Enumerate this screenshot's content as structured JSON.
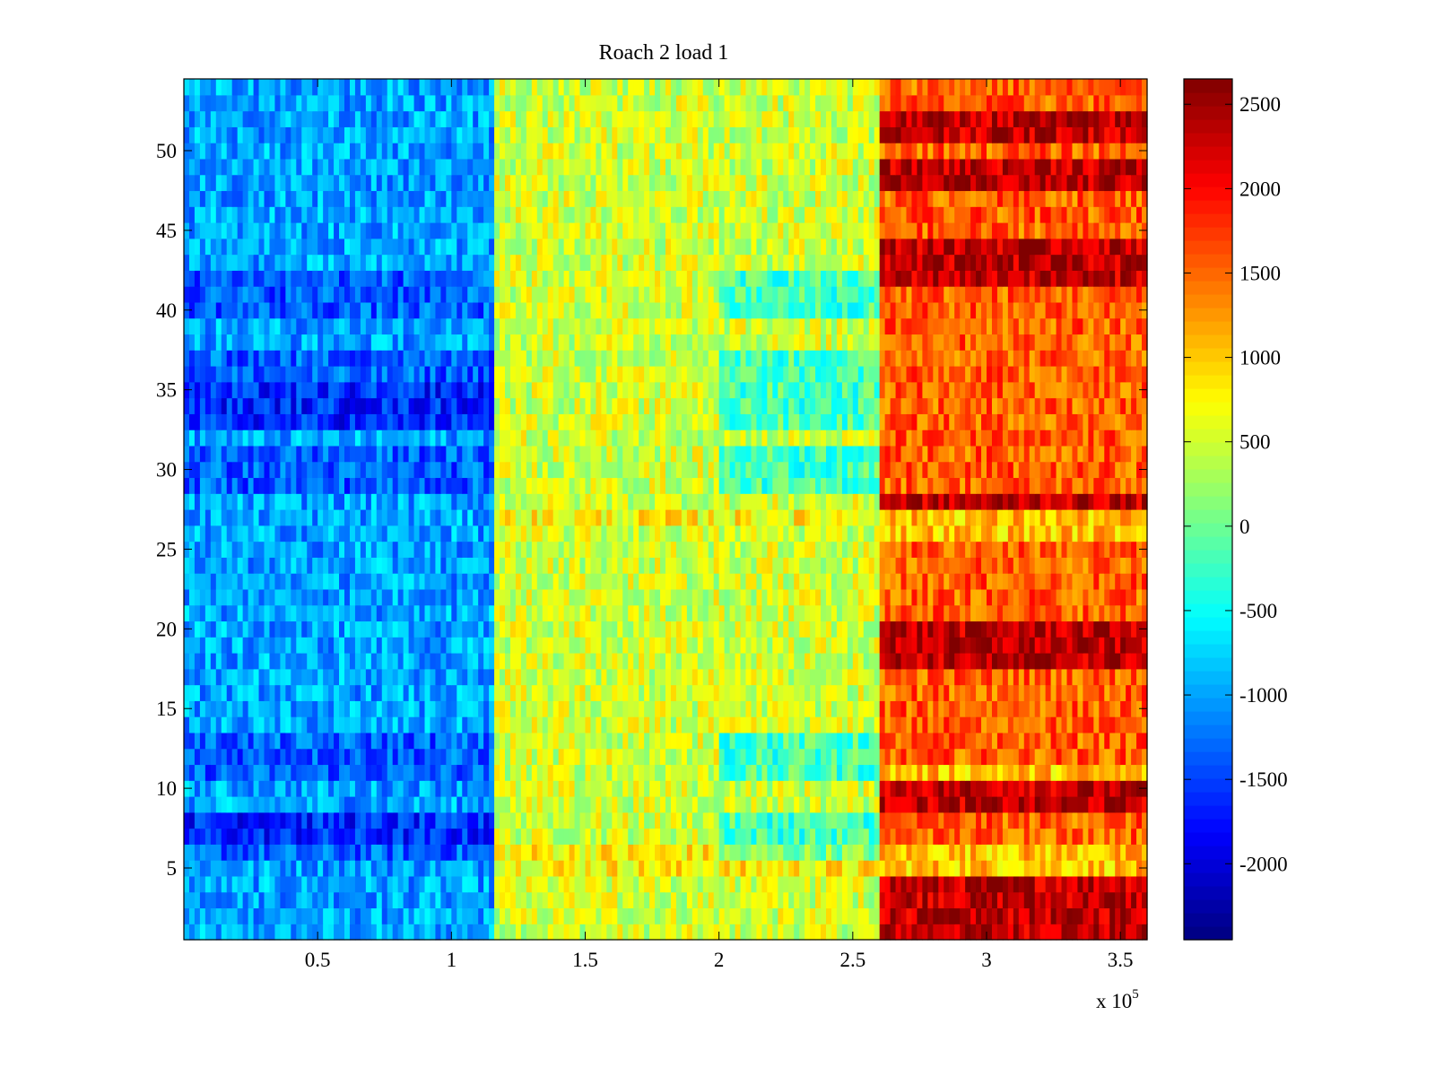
{
  "chart_data": {
    "type": "heatmap",
    "title": "Roach 2 load 1",
    "xlabel": "",
    "ylabel": "",
    "x_exponent_label": "x 10",
    "x_exponent_power": "5",
    "xlim": [
      0,
      360000
    ],
    "ylim": [
      0.5,
      54.5
    ],
    "x_ticks": [
      {
        "value": 50000,
        "label": "0.5"
      },
      {
        "value": 100000,
        "label": "1"
      },
      {
        "value": 150000,
        "label": "1.5"
      },
      {
        "value": 200000,
        "label": "2"
      },
      {
        "value": 250000,
        "label": "2.5"
      },
      {
        "value": 300000,
        "label": "3"
      },
      {
        "value": 350000,
        "label": "3.5"
      }
    ],
    "y_ticks": [
      {
        "value": 5,
        "label": "5"
      },
      {
        "value": 10,
        "label": "10"
      },
      {
        "value": 15,
        "label": "15"
      },
      {
        "value": 20,
        "label": "20"
      },
      {
        "value": 25,
        "label": "25"
      },
      {
        "value": 30,
        "label": "30"
      },
      {
        "value": 35,
        "label": "35"
      },
      {
        "value": 40,
        "label": "40"
      },
      {
        "value": 45,
        "label": "45"
      },
      {
        "value": 50,
        "label": "50"
      }
    ],
    "rows": 54,
    "colorbar": {
      "colormap": "jet",
      "clim": [
        -2450,
        2650
      ],
      "ticks": [
        {
          "value": 2500,
          "label": "2500"
        },
        {
          "value": 2000,
          "label": "2000"
        },
        {
          "value": 1500,
          "label": "1500"
        },
        {
          "value": 1000,
          "label": "1000"
        },
        {
          "value": 500,
          "label": "500"
        },
        {
          "value": 0,
          "label": "0"
        },
        {
          "value": -500,
          "label": "-500"
        },
        {
          "value": -1000,
          "label": "-1000"
        },
        {
          "value": -1500,
          "label": "-1500"
        },
        {
          "value": -2000,
          "label": "-2000"
        }
      ]
    },
    "segments": [
      {
        "x_start": 0,
        "x_end": 117000,
        "mean_value": -1000
      },
      {
        "x_start": 117000,
        "x_end": 260000,
        "mean_value": 500
      },
      {
        "x_start": 260000,
        "x_end": 360000,
        "mean_value": 1700
      }
    ],
    "row_offsets": {
      "low_rows": [
        6,
        7,
        8,
        11,
        12,
        13,
        29,
        30,
        31,
        33,
        34,
        35,
        36,
        37,
        40,
        41,
        42
      ],
      "very_low_rows": [
        7,
        8,
        33,
        34,
        35
      ],
      "high_rows": [
        1,
        2,
        3,
        4,
        9,
        10,
        18,
        19,
        20,
        28,
        42,
        43,
        44,
        48,
        49,
        51,
        52
      ]
    }
  }
}
